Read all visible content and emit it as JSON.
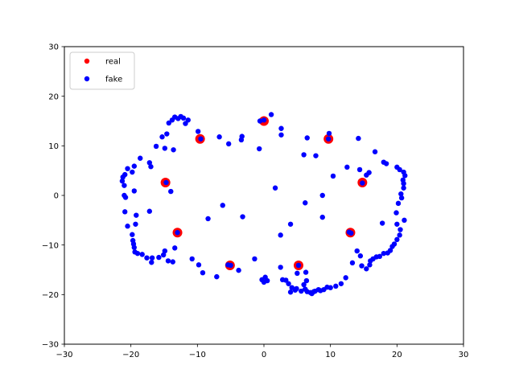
{
  "chart_data": {
    "type": "scatter",
    "title": "",
    "xlabel": "",
    "ylabel": "",
    "xlim": [
      -30,
      30
    ],
    "ylim": [
      -30,
      30
    ],
    "xticks": [
      -30,
      -20,
      -10,
      0,
      10,
      20,
      30
    ],
    "yticks": [
      -30,
      -20,
      -10,
      0,
      10,
      20,
      30
    ],
    "xtick_labels": [
      "−30",
      "−20",
      "−10",
      "0",
      "10",
      "20",
      "30"
    ],
    "ytick_labels": [
      "−30",
      "−20",
      "−10",
      "0",
      "10",
      "20",
      "30"
    ],
    "grid": false,
    "legend_position": "upper-left",
    "series": [
      {
        "name": "real",
        "color": "#ff0000",
        "points": [
          [
            0.0,
            15.0
          ],
          [
            -9.6,
            11.4
          ],
          [
            9.7,
            11.4
          ],
          [
            -14.8,
            2.6
          ],
          [
            14.8,
            2.6
          ],
          [
            -13.0,
            -7.5
          ],
          [
            13.0,
            -7.5
          ],
          [
            -5.1,
            -14.1
          ],
          [
            5.2,
            -14.1
          ]
        ]
      },
      {
        "name": "fake",
        "color": "#0000ff",
        "points": [
          [
            0.0,
            15.2
          ],
          [
            1.1,
            16.3
          ],
          [
            -0.6,
            15.0
          ],
          [
            2.6,
            13.5
          ],
          [
            2.6,
            12.2
          ],
          [
            -9.5,
            11.4
          ],
          [
            -9.9,
            12.9
          ],
          [
            -11.8,
            14.5
          ],
          [
            -11.4,
            15.2
          ],
          [
            -12.9,
            15.5
          ],
          [
            -13.4,
            15.8
          ],
          [
            -13.8,
            15.2
          ],
          [
            -14.3,
            14.6
          ],
          [
            -12.5,
            15.9
          ],
          [
            -12.1,
            15.6
          ],
          [
            -14.6,
            12.4
          ],
          [
            -15.3,
            11.8
          ],
          [
            -16.2,
            9.9
          ],
          [
            -14.9,
            9.5
          ],
          [
            -13.6,
            9.2
          ],
          [
            -17.2,
            6.6
          ],
          [
            -17.0,
            5.8
          ],
          [
            -18.6,
            7.5
          ],
          [
            -19.5,
            5.9
          ],
          [
            -19.8,
            4.7
          ],
          [
            -20.5,
            5.4
          ],
          [
            -20.9,
            4.2
          ],
          [
            -21.2,
            3.7
          ],
          [
            -21.3,
            2.9
          ],
          [
            -21.0,
            2.0
          ],
          [
            -14.7,
            2.6
          ],
          [
            -14.0,
            0.8
          ],
          [
            -21.0,
            0.0
          ],
          [
            -20.8,
            -0.4
          ],
          [
            -19.5,
            0.9
          ],
          [
            -20.9,
            -3.3
          ],
          [
            -19.2,
            -4.0
          ],
          [
            -17.2,
            -3.2
          ],
          [
            -19.3,
            -5.8
          ],
          [
            -20.5,
            -6.2
          ],
          [
            -19.8,
            -7.9
          ],
          [
            -19.7,
            -9.1
          ],
          [
            -19.6,
            -9.8
          ],
          [
            -19.5,
            -10.5
          ],
          [
            -19.4,
            -11.4
          ],
          [
            -19.0,
            -11.7
          ],
          [
            -18.3,
            -11.9
          ],
          [
            -17.6,
            -12.6
          ],
          [
            -16.8,
            -12.6
          ],
          [
            -16.9,
            -13.5
          ],
          [
            -15.8,
            -12.5
          ],
          [
            -15.1,
            -12.0
          ],
          [
            -14.9,
            -11.2
          ],
          [
            -14.4,
            -13.2
          ],
          [
            -13.7,
            -13.4
          ],
          [
            -13.4,
            -10.6
          ],
          [
            -13.0,
            -7.5
          ],
          [
            -8.4,
            -4.7
          ],
          [
            -6.2,
            -2.0
          ],
          [
            -3.2,
            -4.3
          ],
          [
            -10.8,
            -12.8
          ],
          [
            -9.8,
            -14.0
          ],
          [
            -9.2,
            -15.6
          ],
          [
            -7.1,
            -16.4
          ],
          [
            -5.4,
            -14.0
          ],
          [
            -3.8,
            -15.1
          ],
          [
            -5.0,
            -14.1
          ],
          [
            -1.4,
            -12.8
          ],
          [
            -0.3,
            -17.0
          ],
          [
            0.2,
            -16.5
          ],
          [
            0.5,
            -17.2
          ],
          [
            0.0,
            -17.5
          ],
          [
            -6.7,
            11.8
          ],
          [
            -5.3,
            10.4
          ],
          [
            -3.4,
            11.2
          ],
          [
            -3.3,
            11.9
          ],
          [
            -0.7,
            9.4
          ],
          [
            1.7,
            1.5
          ],
          [
            2.5,
            -8.0
          ],
          [
            4.0,
            -5.8
          ],
          [
            6.2,
            -1.5
          ],
          [
            8.8,
            -4.4
          ],
          [
            8.8,
            0.0
          ],
          [
            10.4,
            3.9
          ],
          [
            6.5,
            11.6
          ],
          [
            6.0,
            8.2
          ],
          [
            7.8,
            8.0
          ],
          [
            9.7,
            11.4
          ],
          [
            9.8,
            12.5
          ],
          [
            12.5,
            5.7
          ],
          [
            14.4,
            5.2
          ],
          [
            14.2,
            11.5
          ],
          [
            16.7,
            8.8
          ],
          [
            15.4,
            4.1
          ],
          [
            14.8,
            2.5
          ],
          [
            15.8,
            4.6
          ],
          [
            18.0,
            6.7
          ],
          [
            18.4,
            6.4
          ],
          [
            17.8,
            -5.6
          ],
          [
            20.0,
            5.7
          ],
          [
            20.4,
            5.2
          ],
          [
            21.0,
            4.7
          ],
          [
            21.2,
            4.0
          ],
          [
            20.9,
            3.1
          ],
          [
            21.0,
            2.4
          ],
          [
            21.0,
            1.5
          ],
          [
            20.6,
            0.3
          ],
          [
            20.7,
            -0.5
          ],
          [
            20.2,
            -1.6
          ],
          [
            19.9,
            -3.5
          ],
          [
            20.0,
            -5.8
          ],
          [
            21.1,
            -5.0
          ],
          [
            20.5,
            -6.9
          ],
          [
            20.4,
            -8.0
          ],
          [
            20.0,
            -8.9
          ],
          [
            19.6,
            -9.8
          ],
          [
            19.3,
            -10.3
          ],
          [
            19.0,
            -11.1
          ],
          [
            18.6,
            -11.6
          ],
          [
            18.0,
            -11.7
          ],
          [
            17.4,
            -12.3
          ],
          [
            16.9,
            -12.4
          ],
          [
            16.4,
            -12.8
          ],
          [
            16.0,
            -13.2
          ],
          [
            15.9,
            -14.0
          ],
          [
            14.5,
            -12.2
          ],
          [
            14.0,
            -11.2
          ],
          [
            13.3,
            -13.6
          ],
          [
            12.8,
            -7.4
          ],
          [
            13.1,
            -7.6
          ],
          [
            14.7,
            -14.2
          ],
          [
            15.4,
            -14.8
          ],
          [
            12.3,
            -16.6
          ],
          [
            11.6,
            -17.8
          ],
          [
            10.8,
            -18.3
          ],
          [
            9.5,
            -18.5
          ],
          [
            9.0,
            -19.0
          ],
          [
            8.5,
            -19.2
          ],
          [
            7.5,
            -19.4
          ],
          [
            7.0,
            -19.6
          ],
          [
            6.5,
            -19.4
          ],
          [
            6.2,
            -18.9
          ],
          [
            5.6,
            -19.3
          ],
          [
            4.9,
            -18.8
          ],
          [
            4.2,
            -18.6
          ],
          [
            4.7,
            -19.1
          ],
          [
            4.0,
            -19.5
          ],
          [
            3.7,
            -17.8
          ],
          [
            3.3,
            -17.1
          ],
          [
            2.8,
            -17.0
          ],
          [
            2.5,
            -14.5
          ],
          [
            5.2,
            -14.1
          ],
          [
            5.0,
            -15.7
          ],
          [
            6.3,
            -15.5
          ],
          [
            6.0,
            -18.0
          ],
          [
            6.4,
            -17.2
          ],
          [
            8.2,
            -19.0
          ],
          [
            10.0,
            -18.6
          ],
          [
            7.2,
            -19.8
          ],
          [
            7.7,
            -19.3
          ]
        ]
      }
    ]
  }
}
